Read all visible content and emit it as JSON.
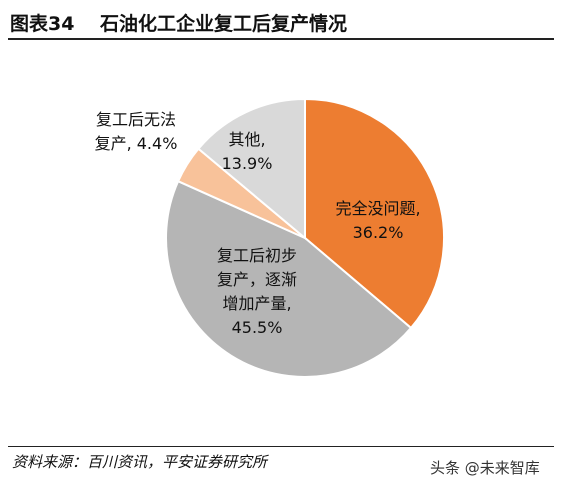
{
  "figure": {
    "number": "图表34",
    "title": "石油化工企业复工后复产情况",
    "source": "资料来源：百川资讯，平安证券研究所",
    "watermark": "头条 @未来智库"
  },
  "chart_data": {
    "type": "pie",
    "title": "石油化工企业复工后复产情况",
    "slices": [
      {
        "label_lines": [
          "完全没问题,",
          "36.2%"
        ],
        "value": 36.2,
        "color": "#ED7D31"
      },
      {
        "label_lines": [
          "复工后初步",
          "复产，逐渐",
          "增加产量,",
          "45.5%"
        ],
        "value": 45.5,
        "color": "#B5B5B5"
      },
      {
        "label_lines": [
          "复工后无法",
          "复产, 4.4%"
        ],
        "value": 4.4,
        "color": "#F8C29A"
      },
      {
        "label_lines": [
          "其他,",
          "13.9%"
        ],
        "value": 13.9,
        "color": "#D9D9D9"
      }
    ],
    "start_angle_deg": 0,
    "direction": "clockwise"
  }
}
